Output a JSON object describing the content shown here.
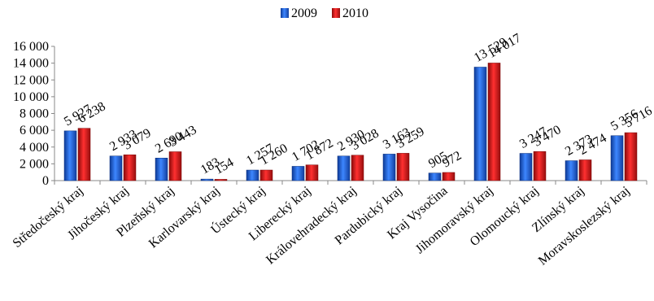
{
  "chart_data": {
    "type": "bar",
    "categories": [
      "Středočeský kraj",
      "Jihočeský kraj",
      "Plzeňský kraj",
      "Karlovarský kraj",
      "Ústecký kraj",
      "Liberecký kraj",
      "Královehradecký kraj",
      "Pardubický kraj",
      "Kraj Vysočina",
      "Jihomoravský kraj",
      "Olomoucký kraj",
      "Zlínský kraj",
      "Moravskoslezský kraj"
    ],
    "series": [
      {
        "name": "2009",
        "color": "#1f5fd6",
        "values": [
          5927,
          2933,
          2690,
          183,
          1257,
          1702,
          2930,
          3163,
          905,
          13529,
          3247,
          2373,
          5356
        ],
        "labels": [
          "5 927",
          "2 933",
          "2 690",
          "183",
          "1 257",
          "1 702",
          "2 930",
          "3 163",
          "905",
          "13 529",
          "3 247",
          "2 373",
          "5 356"
        ]
      },
      {
        "name": "2010",
        "color": "#d41818",
        "values": [
          6238,
          3079,
          3443,
          154,
          1260,
          1872,
          3028,
          3259,
          972,
          14017,
          3470,
          2474,
          5716
        ],
        "labels": [
          "6 238",
          "3 079",
          "3 443",
          "154",
          "1 260",
          "1 872",
          "3 028",
          "3 259",
          "972",
          "14 017",
          "3 470",
          "2 474",
          "5 716"
        ]
      }
    ],
    "yticks": [
      0,
      2000,
      4000,
      6000,
      8000,
      10000,
      12000,
      14000,
      16000
    ],
    "ytick_labels": [
      "0",
      "2 000",
      "4 000",
      "6 000",
      "8 000",
      "10 000",
      "12 000",
      "14 000",
      "16 000"
    ],
    "ylim": [
      0,
      16000
    ],
    "grid": false,
    "legend": "top-center",
    "title": "",
    "xlabel": "",
    "ylabel": ""
  }
}
